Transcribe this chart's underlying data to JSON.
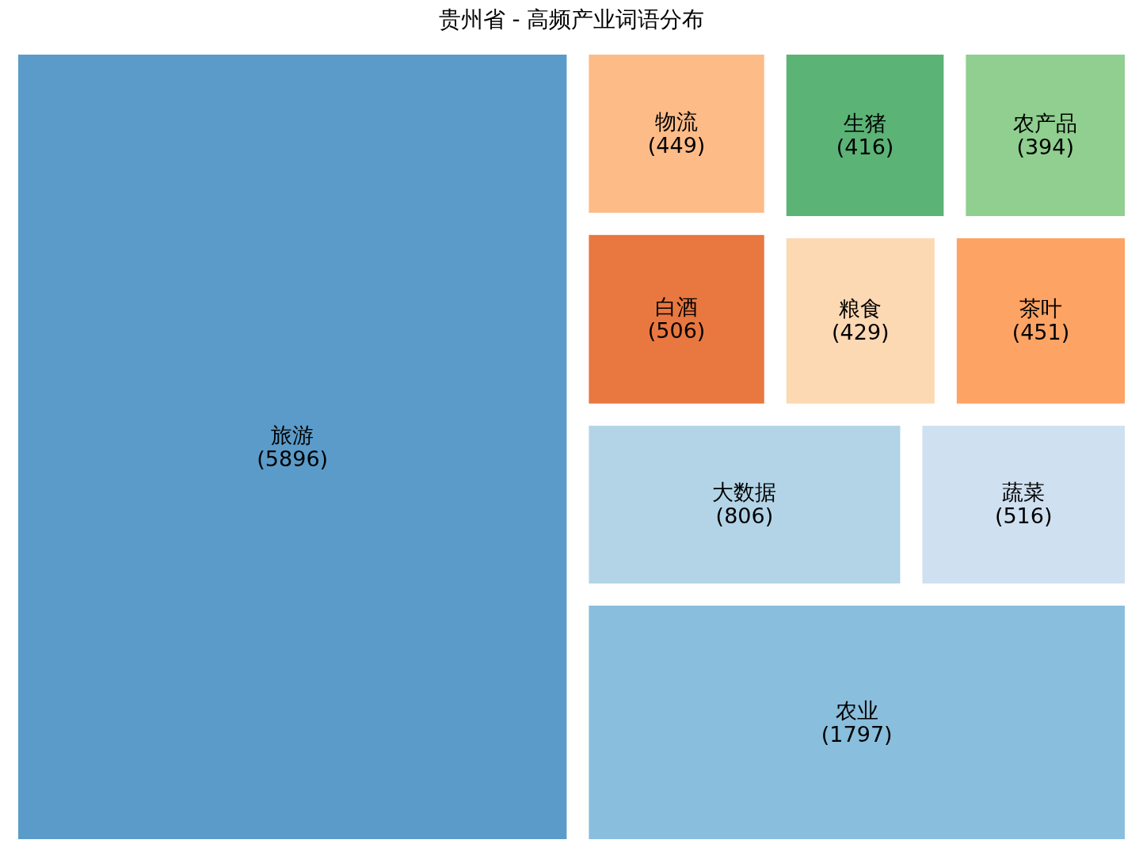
{
  "chart_data": {
    "type": "other",
    "title": "贵州省 - 高频产业词语分布",
    "categories": [
      "旅游",
      "农业",
      "大数据",
      "蔬菜",
      "白酒",
      "物流",
      "粮食",
      "茶叶",
      "生猪",
      "农产品"
    ],
    "values": [
      5896,
      1797,
      806,
      516,
      506,
      449,
      429,
      451,
      416,
      394
    ],
    "colors": [
      "#5b9bc9",
      "#89bedd",
      "#b2d4e6",
      "#cfe0f0",
      "#e97740",
      "#fdbb88",
      "#fcd8b3",
      "#fda364",
      "#5bb376",
      "#90cf8f"
    ],
    "value_labels": [
      "(5896)",
      "(1797)",
      "(806)",
      "(516)",
      "(506)",
      "(449)",
      "(429)",
      "(451)",
      "(416)",
      "(394)"
    ]
  }
}
